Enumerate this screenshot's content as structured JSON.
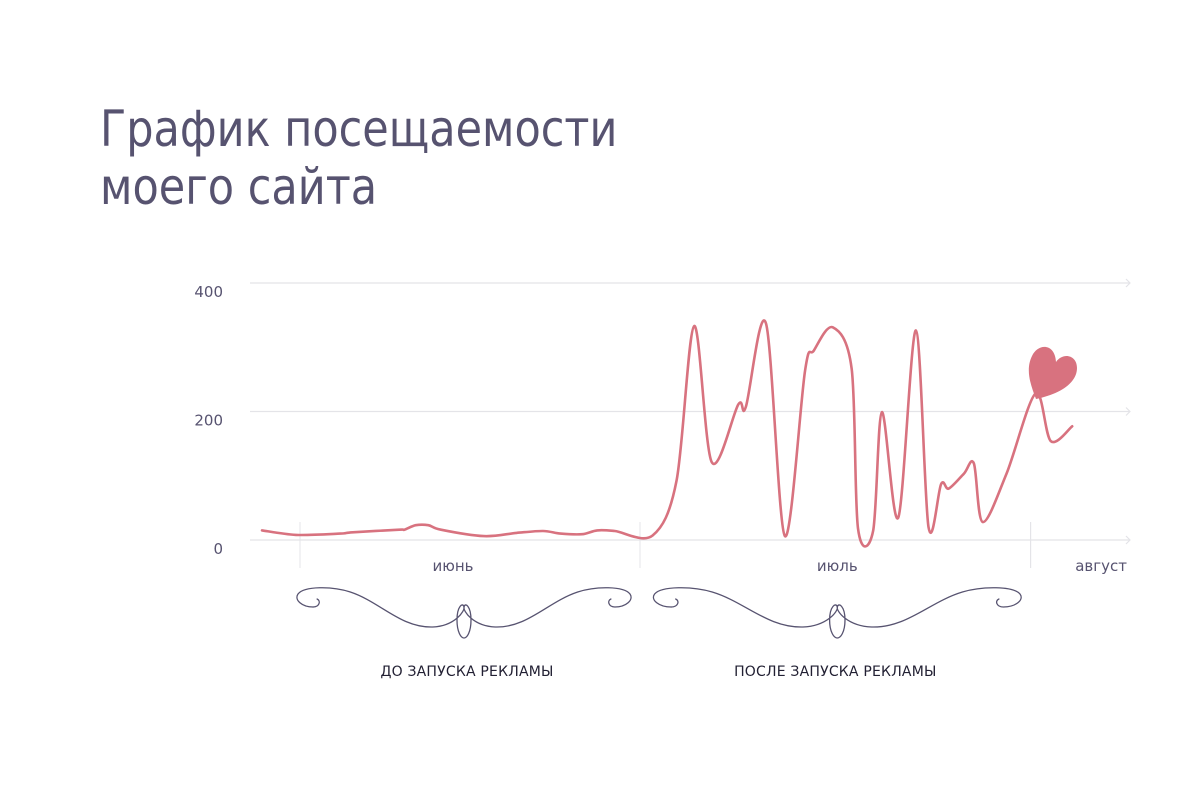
{
  "title_lines": [
    "График посещаемости",
    "моего сайта"
  ],
  "colors": {
    "line": "#d8727f",
    "text": "#575370",
    "grid": "#e4e4e8",
    "swirl": "#575370",
    "heart": "#d8727f"
  },
  "decor": {
    "icon": "heart-icon"
  },
  "chart_data": {
    "type": "line",
    "title": "График посещаемости моего сайта",
    "ylim": [
      0,
      400
    ],
    "yticks": [
      0,
      200,
      400
    ],
    "grid": true,
    "x_unit": "day of season (June 1 = 0)",
    "months": [
      {
        "label": "июнь",
        "start": 0,
        "end": 30
      },
      {
        "label": "июль",
        "start": 30,
        "end": 61
      },
      {
        "label": "август",
        "start": 61,
        "end": 72
      }
    ],
    "periods": [
      {
        "label": "ДО ЗАПУСКА РЕКЛАМЫ",
        "start": 0,
        "end": 30
      },
      {
        "label": "ПОСЛЕ ЗАПУСКА РЕКЛАМЫ",
        "start": 30,
        "end": 61
      }
    ],
    "series": [
      {
        "name": "",
        "points": [
          [
            0,
            15
          ],
          [
            2.7,
            8
          ],
          [
            6.2,
            10
          ],
          [
            7.2,
            12
          ],
          [
            10.9,
            16
          ],
          [
            11.3,
            16
          ],
          [
            12.2,
            23
          ],
          [
            13.2,
            23
          ],
          [
            14.2,
            16
          ],
          [
            17.6,
            6
          ],
          [
            20.2,
            11
          ],
          [
            22.3,
            14
          ],
          [
            23.7,
            10
          ],
          [
            25.4,
            9
          ],
          [
            26.6,
            15
          ],
          [
            28.0,
            14
          ],
          [
            31.0,
            7
          ],
          [
            32.9,
            92
          ],
          [
            34.3,
            333
          ],
          [
            35.7,
            121
          ],
          [
            37.8,
            211
          ],
          [
            38.4,
            207
          ],
          [
            40.0,
            337
          ],
          [
            41.5,
            6
          ],
          [
            43.1,
            264
          ],
          [
            43.8,
            295
          ],
          [
            45.3,
            331
          ],
          [
            46.8,
            266
          ],
          [
            47.3,
            18
          ],
          [
            48.5,
            14
          ],
          [
            49.2,
            199
          ],
          [
            50.5,
            35
          ],
          [
            51.9,
            326
          ],
          [
            52.9,
            20
          ],
          [
            53.9,
            87
          ],
          [
            54.5,
            80
          ],
          [
            55.7,
            103
          ],
          [
            56.5,
            119
          ],
          [
            57.2,
            28
          ],
          [
            59.1,
            104
          ],
          [
            61.4,
            228
          ],
          [
            62.6,
            154
          ],
          [
            64.3,
            177
          ]
        ]
      }
    ]
  }
}
